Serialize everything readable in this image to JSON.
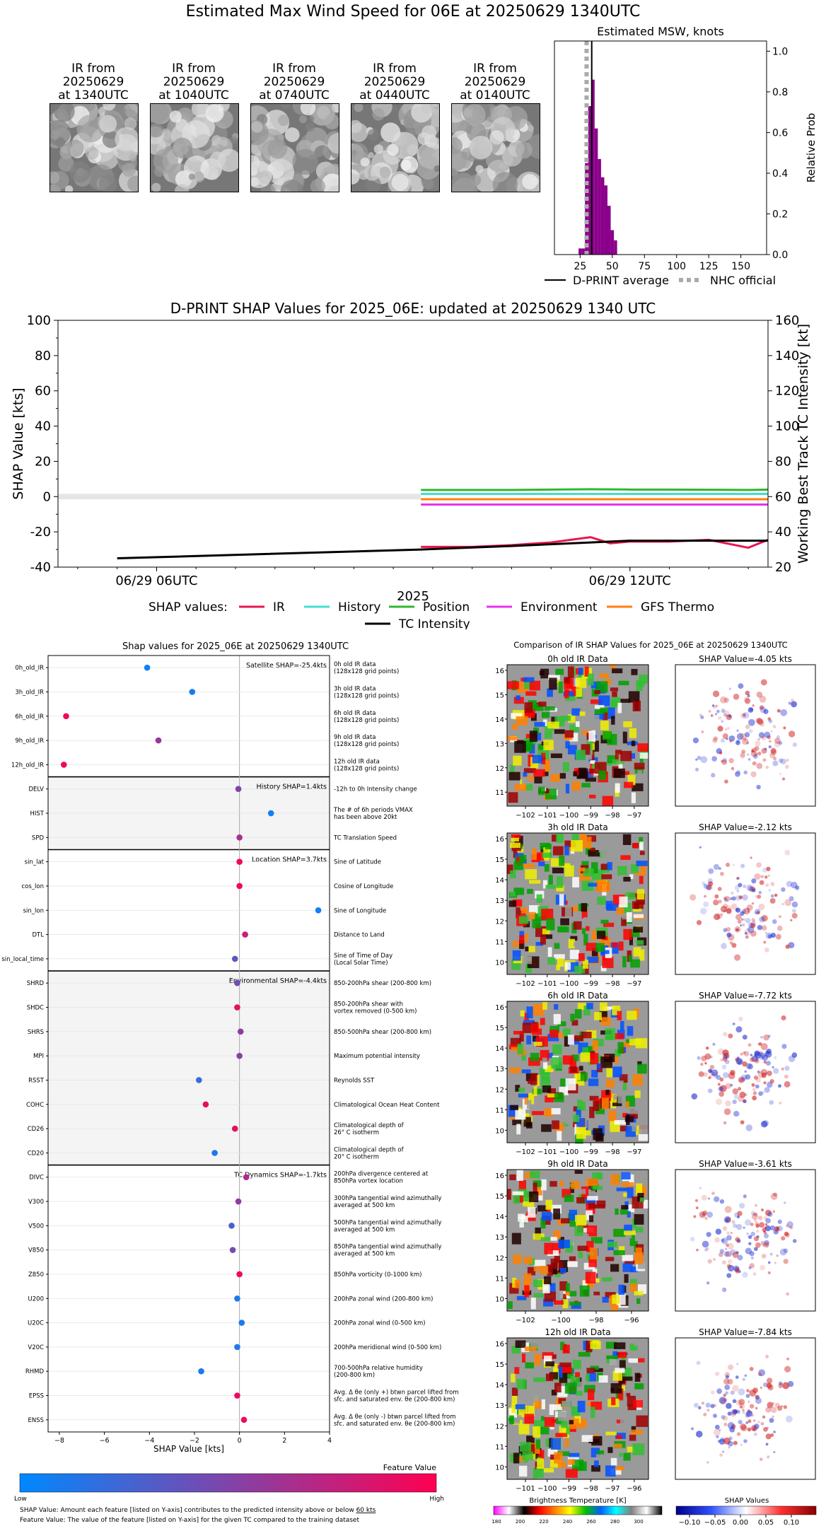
{
  "main_title": "Estimated Max Wind Speed for 06E at 20250629 1340UTC",
  "ir_thumbs": [
    {
      "label": "IR from\n20250629\nat 1340UTC"
    },
    {
      "label": "IR from\n20250629\nat 1040UTC"
    },
    {
      "label": "IR from\n20250629\nat 0740UTC"
    },
    {
      "label": "IR from\n20250629\nat 0440UTC"
    },
    {
      "label": "IR from\n20250629\nat 0140UTC"
    }
  ],
  "chart_data": [
    {
      "type": "bar",
      "title": "Estimated MSW, knots",
      "ylabel": "Relative Prob",
      "xlim": [
        5,
        170
      ],
      "ylim": [
        0,
        1.05
      ],
      "xticks": [
        25,
        50,
        75,
        100,
        125,
        150
      ],
      "yticks": [
        0.0,
        0.2,
        0.4,
        0.6,
        0.8,
        1.0
      ],
      "bar_color": "#8b008b",
      "bins": [
        {
          "x": 25,
          "p": 0.03
        },
        {
          "x": 27.5,
          "p": 0.03
        },
        {
          "x": 30,
          "p": 0.45
        },
        {
          "x": 32.5,
          "p": 0.73
        },
        {
          "x": 35,
          "p": 0.86
        },
        {
          "x": 37.5,
          "p": 0.62
        },
        {
          "x": 40,
          "p": 0.47
        },
        {
          "x": 42.5,
          "p": 0.38
        },
        {
          "x": 45,
          "p": 0.34
        },
        {
          "x": 47.5,
          "p": 0.24
        },
        {
          "x": 50,
          "p": 0.12
        },
        {
          "x": 52.5,
          "p": 0.07
        }
      ],
      "dprint_average": 34,
      "nhc_official": 30,
      "legend": [
        {
          "label": "D-PRINT average",
          "color": "#000000",
          "style": "solid"
        },
        {
          "label": "NHC official",
          "color": "#aaaaaa",
          "style": "dotted"
        }
      ]
    },
    {
      "type": "line",
      "title": "D-PRINT SHAP Values for 2025_06E: updated at 20250629 1340 UTC",
      "xlabel": "2025",
      "ylabel": "SHAP Value [kts]",
      "y2label": "Working Best Track TC Intensity [kt]",
      "ylim": [
        -40,
        100
      ],
      "y2lim": [
        20,
        160
      ],
      "yticks": [
        -40,
        -20,
        0,
        20,
        40,
        60,
        80,
        100
      ],
      "y2ticks": [
        20,
        40,
        60,
        80,
        100,
        120,
        140,
        160
      ],
      "xlim_hours": [
        -2.5,
        15.5
      ],
      "xticks": [
        {
          "h": 0,
          "label": "06/29 06UTC"
        },
        {
          "h": 12,
          "label": "06/29 12UTC"
        }
      ],
      "legend_title": "SHAP values:",
      "zero_band_until_hour": 6.7,
      "series": [
        {
          "name": "IR",
          "color": "#e8174f",
          "axis": "left",
          "x": [
            6.7,
            8,
            9,
            10,
            11,
            11.5,
            12,
            13,
            14,
            15,
            15.5
          ],
          "y": [
            -28.5,
            -28.5,
            -27.5,
            -26,
            -23,
            -26.5,
            -25.5,
            -25.5,
            -24.5,
            -29,
            -24.5
          ]
        },
        {
          "name": "History",
          "color": "#40e0d0",
          "axis": "left",
          "x": [
            6.7,
            15.5
          ],
          "y": [
            1.5,
            1.5
          ]
        },
        {
          "name": "Position",
          "color": "#2eb82e",
          "axis": "left",
          "x": [
            6.7,
            9,
            11,
            12,
            13,
            15,
            15.5
          ],
          "y": [
            3.8,
            3.8,
            4.2,
            4.0,
            4.0,
            3.8,
            4.0
          ]
        },
        {
          "name": "Environment",
          "color": "#e833e8",
          "axis": "left",
          "x": [
            6.7,
            15.5
          ],
          "y": [
            -4.5,
            -4.5
          ]
        },
        {
          "name": "GFS Thermo",
          "color": "#ff7f0e",
          "axis": "left",
          "x": [
            6.7,
            15.5
          ],
          "y": [
            -1.5,
            -1.5
          ]
        },
        {
          "name": "TC Intensity",
          "color": "#000000",
          "axis": "right",
          "x": [
            -1,
            6.7,
            9,
            11,
            12,
            13,
            15.5
          ],
          "y": [
            25,
            30,
            32,
            34,
            35,
            35,
            35
          ]
        }
      ]
    },
    {
      "type": "scatter",
      "title": "Shap values for 2025_06E at 20250629 1340UTC",
      "xlabel": "SHAP Value [kts]",
      "xlim": [
        -8.5,
        4
      ],
      "xticks": [
        -8,
        -6,
        -4,
        -2,
        0,
        2,
        4
      ],
      "colorbar_label": "Feature Value",
      "colorbar_low": "Low",
      "colorbar_high": "High",
      "groups": [
        {
          "label": "Satellite SHAP=-25.4kts",
          "shaded": false
        },
        {
          "label": "History SHAP=1.4kts",
          "shaded": true
        },
        {
          "label": "Location SHAP=3.7kts",
          "shaded": false
        },
        {
          "label": "Environmental SHAP=-4.4kts",
          "shaded": true
        },
        {
          "label": "TC Dynamics SHAP=-1.7kts",
          "shaded": false
        }
      ],
      "features": [
        {
          "name": "0h_old_IR",
          "desc": [
            "0h old IR data",
            "(128x128 grid points)"
          ],
          "shap": -4.1,
          "fv": 0.05,
          "group": 0
        },
        {
          "name": "3h_old_IR",
          "desc": [
            "3h old IR data",
            "(128x128 grid points)"
          ],
          "shap": -2.1,
          "fv": 0.1,
          "group": 0
        },
        {
          "name": "6h_old_IR",
          "desc": [
            "6h old IR data",
            "(128x128 grid points)"
          ],
          "shap": -7.7,
          "fv": 0.95,
          "group": 0
        },
        {
          "name": "9h_old_IR",
          "desc": [
            "9h old IR data",
            "(128x128 grid points)"
          ],
          "shap": -3.6,
          "fv": 0.6,
          "group": 0
        },
        {
          "name": "12h_old_IR",
          "desc": [
            "12h old IR data",
            "(128x128 grid points)"
          ],
          "shap": -7.8,
          "fv": 0.92,
          "group": 0
        },
        {
          "name": "DELV",
          "desc": [
            "-12h to 0h Intensity change"
          ],
          "shap": -0.05,
          "fv": 0.5,
          "group": 1
        },
        {
          "name": "HIST",
          "desc": [
            "The # of 6h periods VMAX",
            "has been above 20kt"
          ],
          "shap": 1.4,
          "fv": 0.05,
          "group": 1
        },
        {
          "name": "SPD",
          "desc": [
            "TC Translation Speed"
          ],
          "shap": 0.0,
          "fv": 0.65,
          "group": 1
        },
        {
          "name": "sin_lat",
          "desc": [
            "Sine of Latitude"
          ],
          "shap": 0.0,
          "fv": 0.95,
          "group": 2
        },
        {
          "name": "cos_lon",
          "desc": [
            "Cosine of Longitude"
          ],
          "shap": 0.0,
          "fv": 0.95,
          "group": 2
        },
        {
          "name": "sin_lon",
          "desc": [
            "Sine of Longitude"
          ],
          "shap": 3.5,
          "fv": 0.05,
          "group": 2
        },
        {
          "name": "DTL",
          "desc": [
            "Distance to Land"
          ],
          "shap": 0.25,
          "fv": 0.8,
          "group": 2
        },
        {
          "name": "sin_local_time",
          "desc": [
            "Sine of Time of Day",
            "(Local Solar Time)"
          ],
          "shap": -0.2,
          "fv": 0.35,
          "group": 2
        },
        {
          "name": "SHRD",
          "desc": [
            "850-200hPa shear (200-800 km)"
          ],
          "shap": -0.1,
          "fv": 0.45,
          "group": 3
        },
        {
          "name": "SHDC",
          "desc": [
            "850-200hPa shear with",
            "vortex removed (0-500 km)"
          ],
          "shap": -0.1,
          "fv": 0.9,
          "group": 3
        },
        {
          "name": "SHRS",
          "desc": [
            "850-500hPa shear (200-800 km)"
          ],
          "shap": 0.05,
          "fv": 0.55,
          "group": 3
        },
        {
          "name": "MPI",
          "desc": [
            "Maximum potential intensity"
          ],
          "shap": 0.0,
          "fv": 0.5,
          "group": 3
        },
        {
          "name": "RSST",
          "desc": [
            "Reynolds SST"
          ],
          "shap": -1.8,
          "fv": 0.2,
          "group": 3
        },
        {
          "name": "COHC",
          "desc": [
            "Climatological Ocean Heat Content"
          ],
          "shap": -1.5,
          "fv": 0.9,
          "group": 3
        },
        {
          "name": "CD26",
          "desc": [
            "Climatological depth of",
            "26° C isotherm"
          ],
          "shap": -0.2,
          "fv": 0.9,
          "group": 3
        },
        {
          "name": "CD20",
          "desc": [
            "Climatological depth of",
            "20° C isotherm"
          ],
          "shap": -1.1,
          "fv": 0.12,
          "group": 3
        },
        {
          "name": "DIVC",
          "desc": [
            "200hPa divergence centered at",
            "850hPa vortex location"
          ],
          "shap": 0.3,
          "fv": 0.7,
          "group": 4
        },
        {
          "name": "V300",
          "desc": [
            "300hPa tangential wind azimuthally",
            "averaged at 500 km"
          ],
          "shap": -0.05,
          "fv": 0.55,
          "group": 4
        },
        {
          "name": "V500",
          "desc": [
            "500hPa tangential wind azimuthally",
            "averaged at 500 km"
          ],
          "shap": -0.35,
          "fv": 0.3,
          "group": 4
        },
        {
          "name": "V850",
          "desc": [
            "850hPa tangential wind azimuthally",
            "averaged at 500 km"
          ],
          "shap": -0.3,
          "fv": 0.45,
          "group": 4
        },
        {
          "name": "Z850",
          "desc": [
            "850hPa vorticity (0-1000 km)"
          ],
          "shap": 0.0,
          "fv": 0.95,
          "group": 4
        },
        {
          "name": "U200",
          "desc": [
            "200hPa zonal wind (200-800 km)"
          ],
          "shap": -0.1,
          "fv": 0.1,
          "group": 4
        },
        {
          "name": "U20C",
          "desc": [
            "200hPa zonal wind (0-500 km)"
          ],
          "shap": 0.1,
          "fv": 0.1,
          "group": 4
        },
        {
          "name": "V20C",
          "desc": [
            "200hPa meridional wind (0-500 km)"
          ],
          "shap": -0.1,
          "fv": 0.1,
          "group": 4
        },
        {
          "name": "RHMD",
          "desc": [
            "700-500hPa relative humidity",
            "(200-800 km)"
          ],
          "shap": -1.7,
          "fv": 0.1,
          "group": 4
        },
        {
          "name": "EPSS",
          "desc": [
            "Avg. Δ θe (only +) btwn parcel lifted from",
            "sfc. and saturated env. θe (200-800 km)"
          ],
          "shap": -0.1,
          "fv": 0.92,
          "group": 4
        },
        {
          "name": "ENSS",
          "desc": [
            "Avg. Δ θe (only -) btwn parcel lifted from",
            "sfc. and saturated env. θe (200-800 km)"
          ],
          "shap": 0.2,
          "fv": 0.92,
          "group": 4
        }
      ]
    }
  ],
  "comparison": {
    "title": "Comparison of IR SHAP Values for 2025_06E at 20250629 1340UTC",
    "rows": [
      {
        "ir_title": "0h old IR Data",
        "shap_title": "SHAP Value=-4.05 kts",
        "xticks": [
          "−102",
          "−101",
          "−100",
          "−99",
          "−98",
          "−97"
        ],
        "yticks": [
          "16",
          "15",
          "14",
          "13",
          "12",
          "11"
        ]
      },
      {
        "ir_title": "3h old IR Data",
        "shap_title": "SHAP Value=-2.12 kts",
        "xticks": [
          "−102",
          "−101",
          "−100",
          "−99",
          "−98",
          "−97"
        ],
        "yticks": [
          "16",
          "15",
          "14",
          "13",
          "12",
          "11",
          "10"
        ]
      },
      {
        "ir_title": "6h old IR Data",
        "shap_title": "SHAP Value=-7.72 kts",
        "xticks": [
          "−102",
          "−101",
          "−100",
          "−99",
          "−98",
          "−97"
        ],
        "yticks": [
          "16",
          "15",
          "14",
          "13",
          "12",
          "11",
          "10"
        ]
      },
      {
        "ir_title": "9h old IR Data",
        "shap_title": "SHAP Value=-3.61 kts",
        "xticks": [
          "−102",
          "−100",
          "−98",
          "−96"
        ],
        "yticks": [
          "16",
          "15",
          "14",
          "13",
          "12",
          "11",
          "10"
        ]
      },
      {
        "ir_title": "12h old IR Data",
        "shap_title": "SHAP Value=-7.84 kts",
        "xticks": [
          "−101",
          "−100",
          "−99",
          "−98",
          "−97",
          "−96"
        ],
        "yticks": [
          "16",
          "15",
          "14",
          "13",
          "12",
          "11",
          "10"
        ]
      }
    ],
    "bt_colorbar_label": "Brightness Temperature [K]",
    "bt_ticks": [
      "180",
      "200",
      "220",
      "240",
      "260",
      "280",
      "300"
    ],
    "shap_colorbar_label": "SHAP Values",
    "shap_ticks": [
      "−0.10",
      "−0.05",
      "0.00",
      "0.05",
      "0.10"
    ]
  },
  "footnotes": {
    "line1_prefix": "SHAP Value: Amount each feature [listed on Y-axis] contributes to the predicted intensity above or below ",
    "line1_link": "60 kts",
    "line2": "Feature Value: The value of the feature [listed on Y-axis] for the given TC compared to the training dataset"
  }
}
